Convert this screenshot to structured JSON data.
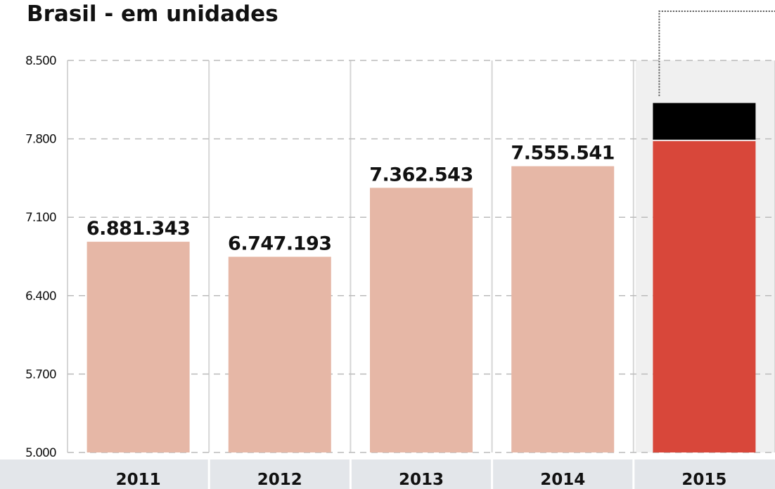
{
  "chart_data": {
    "type": "bar",
    "title": "Brasil - em unidades",
    "categories": [
      "2011",
      "2012",
      "2013",
      "2014",
      "2015"
    ],
    "values": [
      6881343,
      6747193,
      7362543,
      7555541,
      7780000
    ],
    "data_labels": [
      "6.881.343",
      "6.747.193",
      "7.362.543",
      "7.555.541",
      ""
    ],
    "ylim": [
      5000,
      8500
    ],
    "yticks": [
      5000,
      5700,
      6400,
      7100,
      7800,
      8500
    ],
    "ytick_labels": [
      "5.000",
      "5.700",
      "6.400",
      "7.100",
      "7.800",
      "8.500"
    ],
    "unit_scale": 1000,
    "highlight_extra": 340,
    "grid": true,
    "colors": {
      "bar": "#e6b7a6",
      "highlight": "#d8473a",
      "highlight_extra": "#000000",
      "grid": "#bbbbbb",
      "axis_band": "#e3e6ea",
      "column_divider": "#d6d6d6",
      "highlight_column_bg": "#f0f0f0",
      "callout_line": "#555555"
    }
  }
}
